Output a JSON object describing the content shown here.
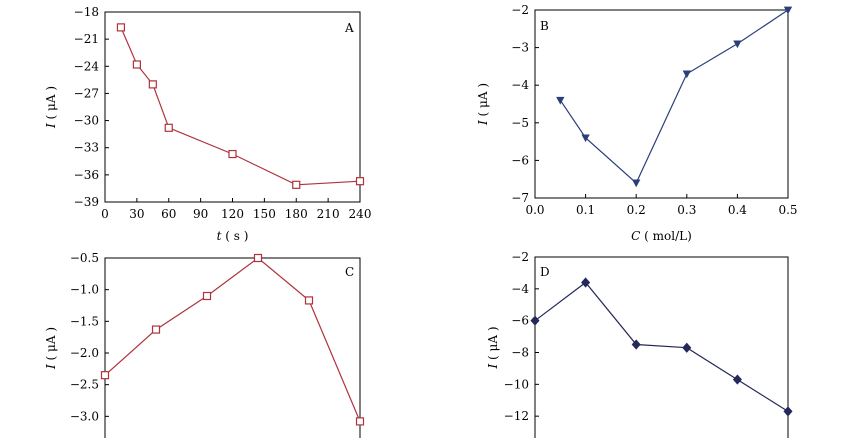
{
  "chart_data": [
    {
      "panel": "A",
      "type": "line",
      "marker": "square-open",
      "color": "#b0323c",
      "xlabel_var": "t",
      "xlabel_unit": "( s )",
      "ylabel_var": "I",
      "ylabel_unit": "( μA )",
      "xlim": [
        0,
        240
      ],
      "ylim": [
        -39,
        -18
      ],
      "xticks": [
        0,
        30,
        60,
        90,
        120,
        150,
        180,
        210,
        240
      ],
      "yticks": [
        -18,
        -21,
        -24,
        -27,
        -30,
        -33,
        -36,
        -39
      ],
      "xtick_labels": [
        "0",
        "30",
        "60",
        "90",
        "120",
        "150",
        "180",
        "210",
        "240"
      ],
      "ytick_labels": [
        "−18",
        "−21",
        "−24",
        "−27",
        "−30",
        "−33",
        "−36",
        "−39"
      ],
      "x": [
        15,
        30,
        45,
        60,
        120,
        180,
        240
      ],
      "y": [
        -19.7,
        -23.8,
        -26.0,
        -30.8,
        -33.7,
        -37.1,
        -36.7
      ]
    },
    {
      "panel": "B",
      "type": "line",
      "marker": "triangle-down-filled",
      "color": "#2a3f7a",
      "xlabel_var": "C",
      "xlabel_unit": "( mol/L)",
      "ylabel_var": "I",
      "ylabel_unit": "( μA )",
      "xlim": [
        0,
        0.5
      ],
      "ylim": [
        -7,
        -2
      ],
      "xticks": [
        0,
        0.1,
        0.2,
        0.3,
        0.4,
        0.5
      ],
      "yticks": [
        -2,
        -3,
        -4,
        -5,
        -6,
        -7
      ],
      "xtick_labels": [
        "0.0",
        "0.1",
        "0.2",
        "0.3",
        "0.4",
        "0.5"
      ],
      "ytick_labels": [
        "−2",
        "−3",
        "−4",
        "−5",
        "−6",
        "−7"
      ],
      "x": [
        0.05,
        0.1,
        0.2,
        0.3,
        0.4,
        0.5
      ],
      "y": [
        -4.4,
        -5.4,
        -6.6,
        -3.7,
        -2.9,
        -2.0
      ]
    },
    {
      "panel": "C",
      "type": "line",
      "marker": "square-open",
      "color": "#b0323c",
      "ylabel_var": "I",
      "ylabel_unit": "( μA )",
      "xlim": [
        0,
        5
      ],
      "ylim": [
        -3.5,
        -0.5
      ],
      "xticks": [
        1,
        2,
        3,
        4,
        5
      ],
      "yticks": [
        -0.5,
        -1.0,
        -1.5,
        -2.0,
        -2.5,
        -3.0,
        -3.5
      ],
      "ytick_labels": [
        "−0.5",
        "−1.0",
        "−1.5",
        "−2.0",
        "−2.5",
        "−3.0",
        "−3.5"
      ],
      "x": [
        0,
        1,
        2,
        3,
        4,
        5
      ],
      "y": [
        -2.35,
        -1.63,
        -1.1,
        -0.5,
        -1.17,
        -3.08
      ]
    },
    {
      "panel": "D",
      "type": "line",
      "marker": "diamond-filled",
      "color": "#24285a",
      "ylabel_var": "I",
      "ylabel_unit": "( μA )",
      "xlim": [
        0,
        5
      ],
      "ylim": [
        -14,
        -2
      ],
      "xticks": [],
      "yticks": [
        -2,
        -4,
        -6,
        -8,
        -10,
        -12
      ],
      "ytick_labels": [
        "−2",
        "−4",
        "−6",
        "−8",
        "−10",
        "−12"
      ],
      "x": [
        0,
        1,
        2,
        3,
        4,
        5
      ],
      "y": [
        -6.0,
        -3.6,
        -7.5,
        -7.7,
        -9.7,
        -11.7
      ]
    }
  ]
}
